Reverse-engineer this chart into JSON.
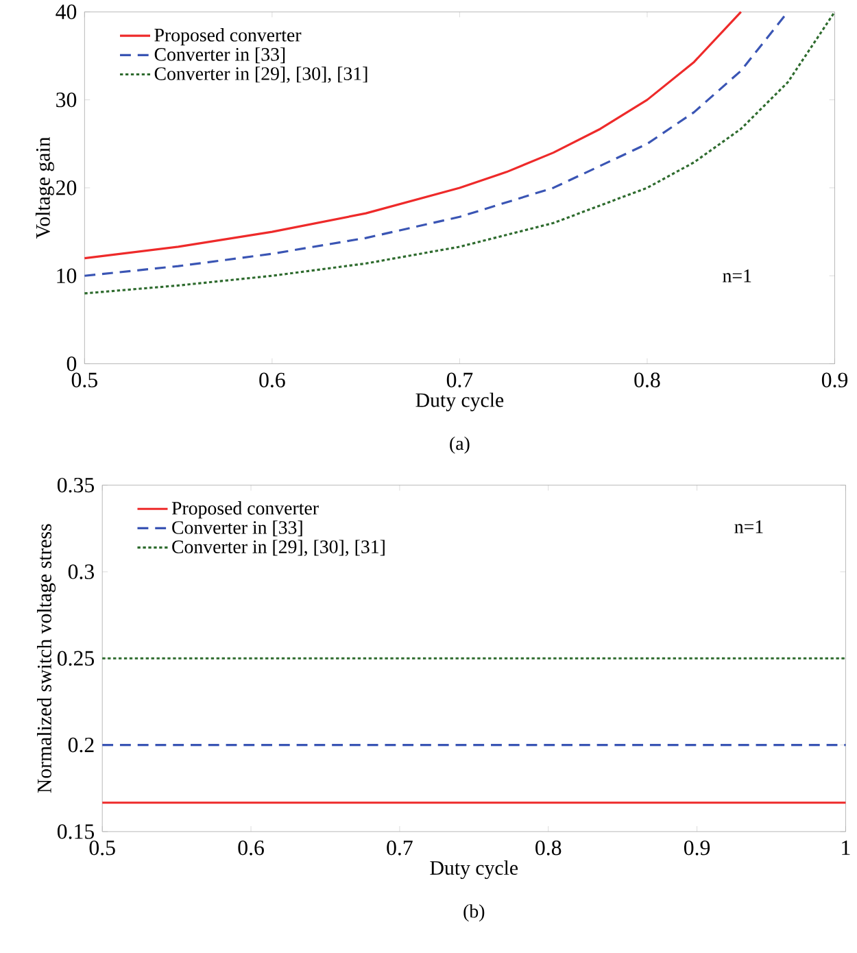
{
  "chart_data": [
    {
      "type": "line",
      "xlabel": "Duty cycle",
      "ylabel": "Voltage gain",
      "xlim": [
        0.5,
        0.9
      ],
      "xticks": [
        0.5,
        0.6,
        0.7,
        0.8,
        0.9
      ],
      "ylim": [
        0,
        40
      ],
      "yticks": [
        0,
        10,
        20,
        30,
        40
      ],
      "legend": "top left",
      "annotations": [
        "n=1",
        "(a)"
      ],
      "series": [
        {
          "name": "Proposed converter",
          "color": "#ee2a2a",
          "line_style": "solid",
          "x": [
            0.5,
            0.55,
            0.6,
            0.65,
            0.7,
            0.725,
            0.75,
            0.775,
            0.8,
            0.825,
            0.85
          ],
          "values": [
            12,
            13.3,
            15,
            17.1,
            20,
            21.8,
            24,
            26.7,
            30,
            34.3,
            40
          ]
        },
        {
          "name": "Converter in [33]",
          "color": "#3a55b4",
          "line_style": "dashed",
          "x": [
            0.5,
            0.55,
            0.6,
            0.65,
            0.7,
            0.75,
            0.8,
            0.825,
            0.85,
            0.875
          ],
          "values": [
            10,
            11.1,
            12.5,
            14.3,
            16.7,
            20,
            25,
            28.6,
            33.3,
            40
          ]
        },
        {
          "name": "Converter in [29], [30], [31]",
          "color": "#2e6b2e",
          "line_style": "dotted",
          "x": [
            0.5,
            0.55,
            0.6,
            0.65,
            0.7,
            0.75,
            0.8,
            0.825,
            0.85,
            0.875,
            0.9
          ],
          "values": [
            8,
            8.9,
            10,
            11.4,
            13.3,
            16,
            20,
            22.9,
            26.7,
            32,
            40
          ]
        }
      ]
    },
    {
      "type": "line",
      "xlabel": "Duty cycle",
      "ylabel": "Normalized switch voltage stress",
      "xlim": [
        0.5,
        1
      ],
      "xticks": [
        0.5,
        0.6,
        0.7,
        0.8,
        0.9,
        1
      ],
      "ylim": [
        0.15,
        0.35
      ],
      "yticks": [
        0.15,
        0.2,
        0.25,
        0.3,
        0.35
      ],
      "legend": "top left",
      "annotations": [
        "n=1",
        "(b)"
      ],
      "series": [
        {
          "name": "Proposed converter",
          "color": "#ee2a2a",
          "line_style": "solid",
          "x": [
            0.5,
            1
          ],
          "values": [
            0.1667,
            0.1667
          ]
        },
        {
          "name": "Converter in [33]",
          "color": "#3a55b4",
          "line_style": "dashed",
          "x": [
            0.5,
            1
          ],
          "values": [
            0.2,
            0.2
          ]
        },
        {
          "name": "Converter in [29], [30], [31]",
          "color": "#2e6b2e",
          "line_style": "dotted",
          "x": [
            0.5,
            1
          ],
          "values": [
            0.25,
            0.25
          ]
        }
      ]
    }
  ]
}
